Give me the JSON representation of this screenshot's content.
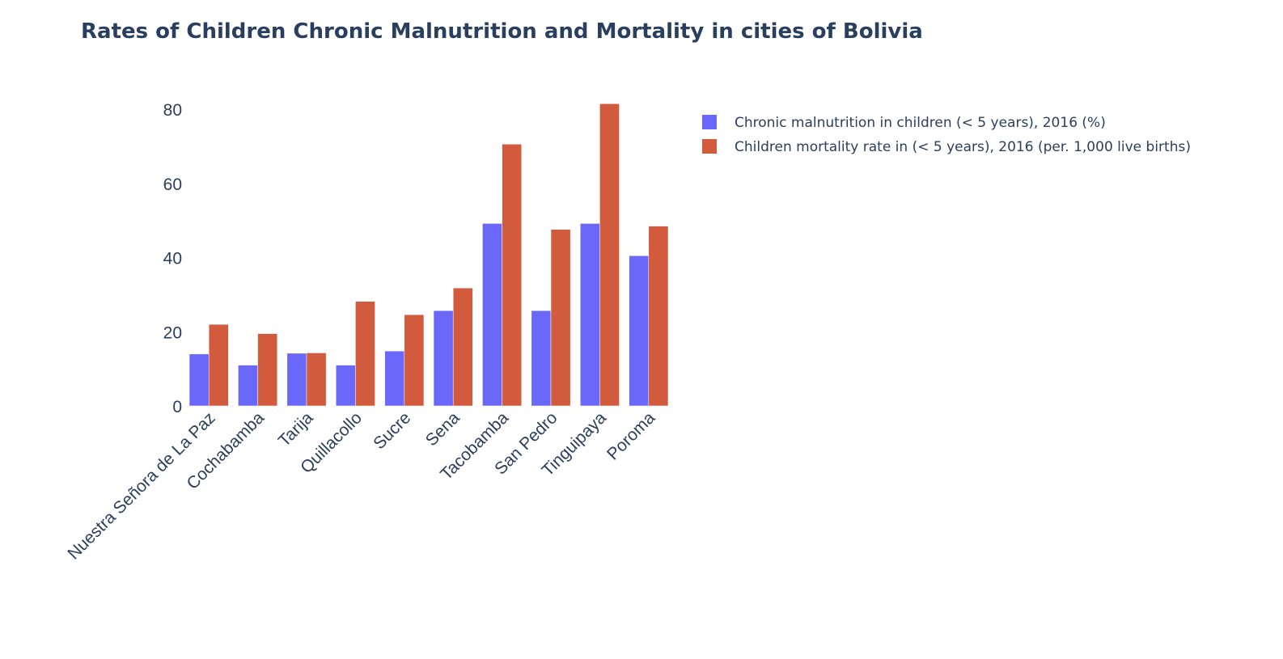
{
  "title": "Rates of Children Chronic Malnutrition and Mortality in cities of Bolivia",
  "colors": {
    "series_1": "#6a68f8",
    "series_2": "#d15b3c",
    "text": "#2a3f5f",
    "background": "#ffffff"
  },
  "chart_data": {
    "type": "bar",
    "title": "Rates of Children Chronic Malnutrition and Mortality in cities of Bolivia",
    "xlabel": "",
    "ylabel": "",
    "categories": [
      "Nuestra Señora de La Paz",
      "Cochabamba",
      "Tarija",
      "Quillacollo",
      "Sucre",
      "Sena",
      "Tacobamba",
      "San Pedro",
      "Tinguipaya",
      "Poroma"
    ],
    "series": [
      {
        "name": "Chronic malnutrition in children (< 5 years), 2016 (%)",
        "values": [
          14,
          11,
          14.2,
          11,
          14.8,
          25.7,
          49.2,
          25.7,
          49.2,
          40.5
        ]
      },
      {
        "name": "Children mortality rate in (< 5 years), 2016 (per. 1,000 live births)",
        "values": [
          22,
          19.5,
          14.3,
          28.2,
          24.6,
          31.8,
          70.6,
          47.6,
          81.5,
          48.5
        ]
      }
    ],
    "ylim": [
      0,
      82
    ],
    "yticks": [
      0,
      20,
      40,
      60,
      80
    ],
    "grid": false,
    "legend_position": "top-right",
    "barmode": "group"
  }
}
